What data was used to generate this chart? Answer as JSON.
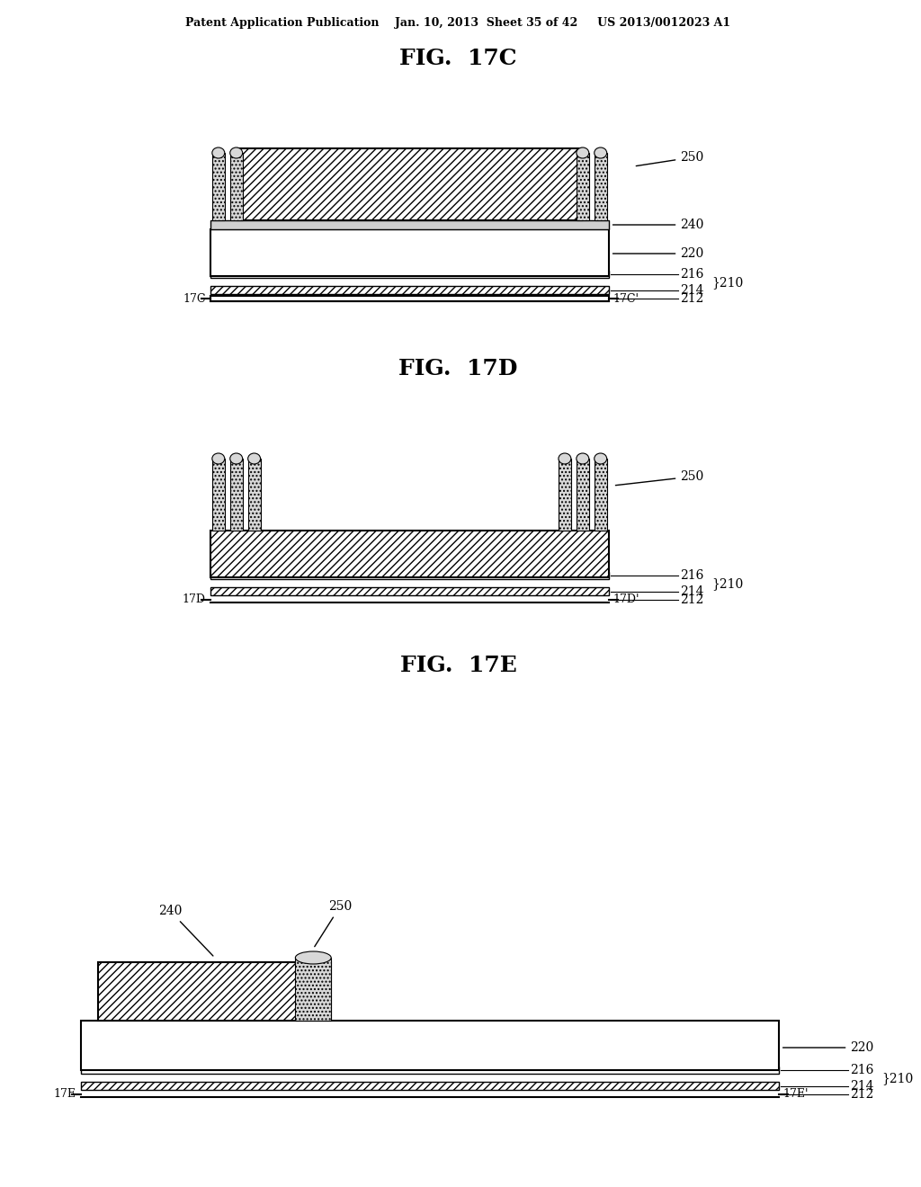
{
  "bg_color": "#ffffff",
  "header_text": "Patent Application Publication    Jan. 10, 2013  Sheet 35 of 42     US 2013/0012023 A1",
  "fig_titles": [
    "FIG.  17C",
    "FIG.  17D",
    "FIG.  17E"
  ],
  "hatch_diagonal": "////",
  "hatch_dense": "////",
  "hatch_dotted": "....",
  "label_color": "#000000",
  "line_color": "#000000",
  "fill_white": "#ffffff",
  "fill_light": "#e8e8e8"
}
